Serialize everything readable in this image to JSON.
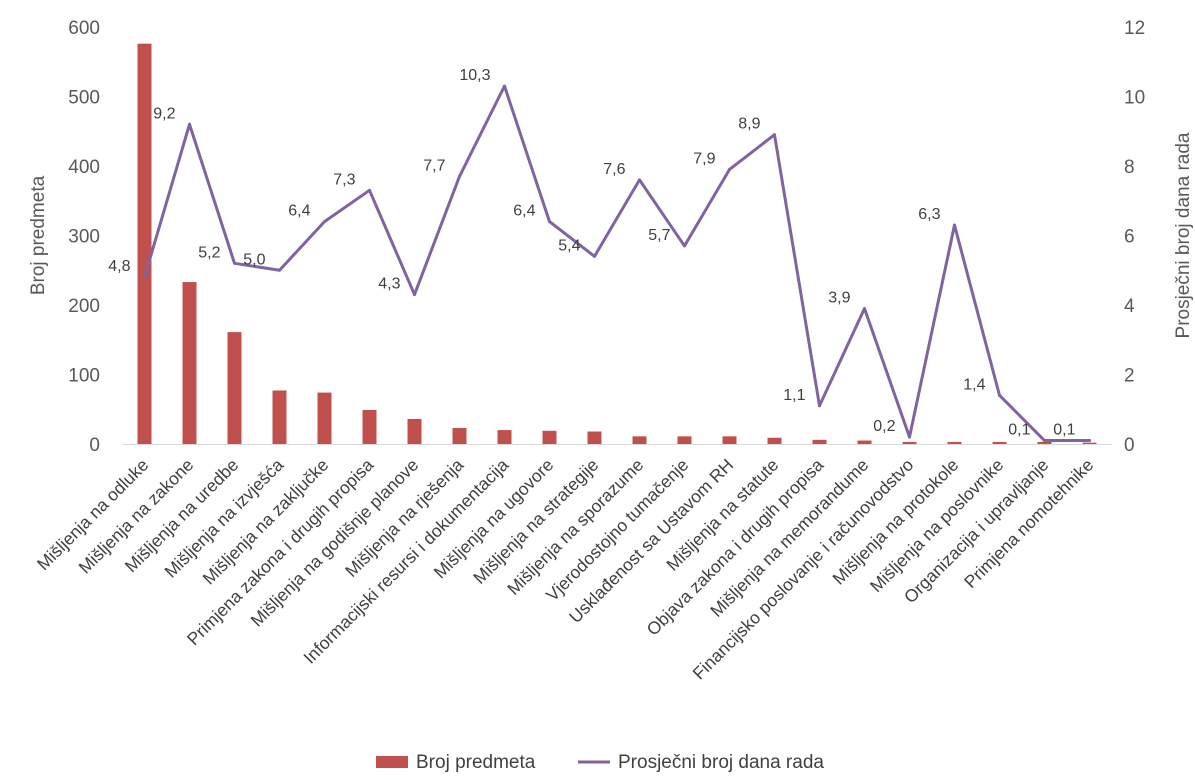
{
  "chart_data": {
    "type": "bar+line",
    "title": "",
    "categories": [
      "Mišljenja na odluke",
      "Mišljenja na zakone",
      "Mišljenja na uredbe",
      "Mišljenja na izvješća",
      "Mišljenja na zaključke",
      "Primjena zakona i drugih propisa",
      "Mišljenja na godišnje planove",
      "Mišljenja na rješenja",
      "Informacijski resursi i dokumentacija",
      "Mišljenja na ugovore",
      "Mišljenja na strategije",
      "Mišljenja na sporazume",
      "Vjerodostojno tumačenje",
      "Usklađenost sa Ustavom RH",
      "Mišljenja na statute",
      "Objava zakona i drugih propisa",
      "Mišljenja na memorandume",
      "Financijsko poslovanje i računovodstvo",
      "Mišljenja na protokole",
      "Mišljenja na poslovnike",
      "Organizacija i upravljanje",
      "Primjena nomotehnike"
    ],
    "series": [
      {
        "name": "Broj predmeta",
        "type": "bar",
        "axis": "left",
        "color": "#C0504D",
        "values": [
          576,
          233,
          161,
          77,
          74,
          49,
          36,
          23,
          20,
          19,
          18,
          11,
          11,
          11,
          9,
          6,
          5,
          3,
          3,
          3,
          3,
          2
        ]
      },
      {
        "name": "Prosječni broj dana rada",
        "type": "line",
        "axis": "right",
        "color": "#8064A2",
        "values": [
          4.8,
          9.2,
          5.2,
          5.0,
          6.4,
          7.3,
          4.3,
          7.7,
          10.3,
          6.4,
          5.4,
          7.6,
          5.7,
          7.9,
          8.9,
          1.1,
          3.9,
          0.2,
          6.3,
          1.4,
          0.1,
          0.1
        ],
        "labels": [
          "4,8",
          "9,2",
          "5,2",
          "5,0",
          "6,4",
          "7,3",
          "4,3",
          "7,7",
          "10,3",
          "6,4",
          "5,4",
          "7,6",
          "5,7",
          "7,9",
          "8,9",
          "1,1",
          "3,9",
          "0,2",
          "6,3",
          "1,4",
          "0,1",
          "0,1"
        ]
      }
    ],
    "y_left": {
      "label": "Broj predmeta",
      "min": 0,
      "max": 600,
      "ticks": [
        "0",
        "100",
        "200",
        "300",
        "400",
        "500",
        "600"
      ]
    },
    "y_right": {
      "label": "Prosječni broj dana rada",
      "min": 0,
      "max": 12,
      "ticks": [
        "0",
        "2",
        "4",
        "6",
        "8",
        "10",
        "12"
      ]
    },
    "grid": false,
    "legend": {
      "position": "bottom",
      "entries": [
        "Broj predmeta",
        "Prosječni broj dana rada"
      ]
    }
  }
}
